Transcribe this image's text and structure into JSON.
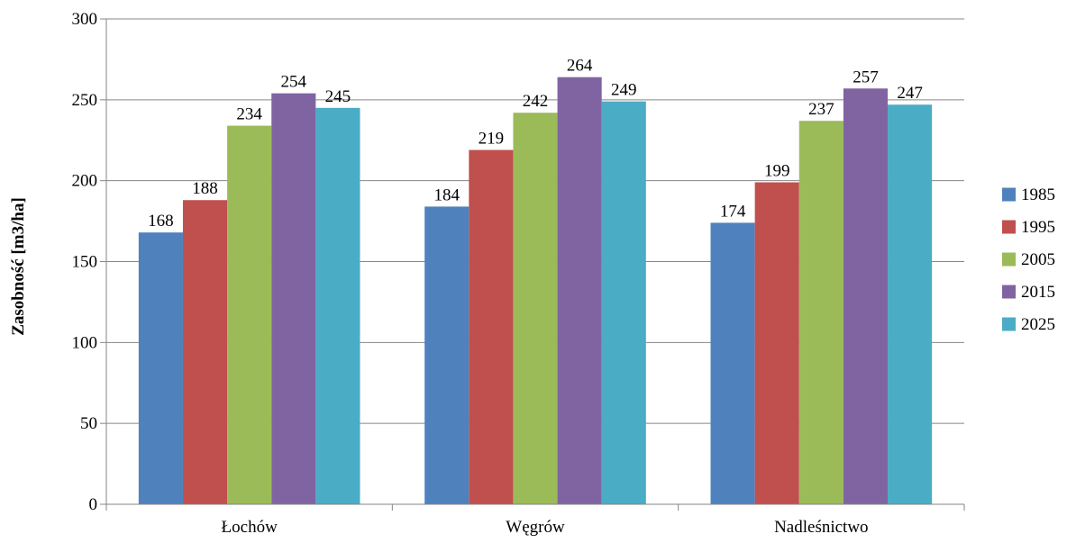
{
  "chart_data": {
    "type": "bar",
    "title": "",
    "xlabel": "",
    "ylabel": "Zasobność [m3/ha]",
    "ylim": [
      0,
      300
    ],
    "yticks": [
      0,
      50,
      100,
      150,
      200,
      250,
      300
    ],
    "grid": true,
    "legend_position": "right",
    "categories": [
      "Łochów",
      "Węgrów",
      "Nadleśnictwo"
    ],
    "series": [
      {
        "name": "1985",
        "color": "#4F81BD",
        "values": [
          168,
          184,
          174
        ]
      },
      {
        "name": "1995",
        "color": "#C0504D",
        "values": [
          188,
          219,
          199
        ]
      },
      {
        "name": "2005",
        "color": "#9BBB59",
        "values": [
          234,
          242,
          237
        ]
      },
      {
        "name": "2015",
        "color": "#8064A2",
        "values": [
          254,
          264,
          257
        ]
      },
      {
        "name": "2025",
        "color": "#4BACC6",
        "values": [
          245,
          249,
          247
        ]
      }
    ]
  }
}
